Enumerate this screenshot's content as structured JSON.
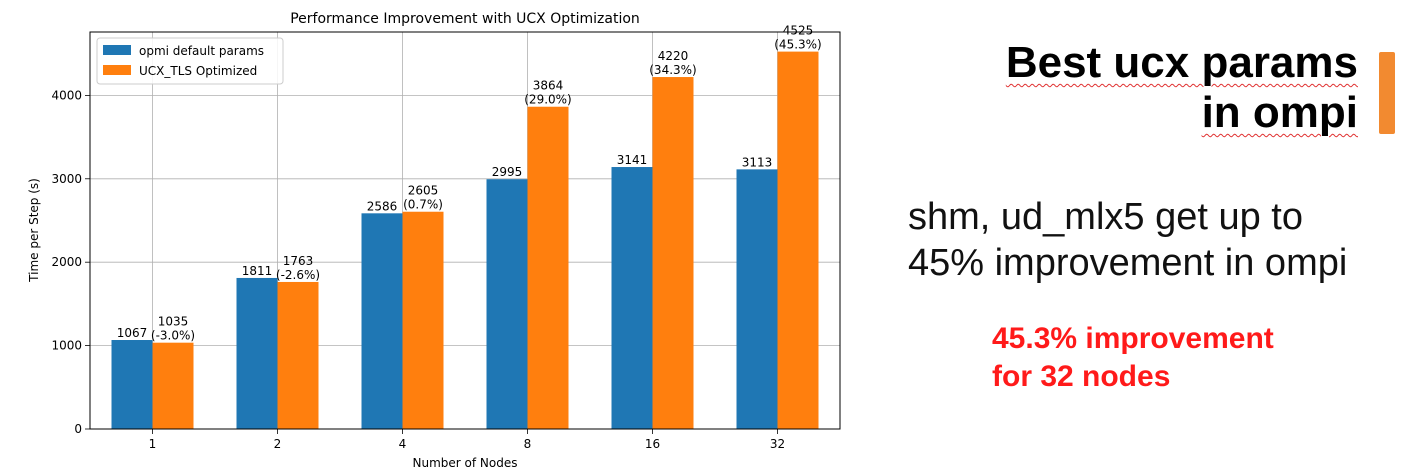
{
  "chart_data": {
    "type": "bar",
    "title": "Performance Improvement with UCX Optimization",
    "xlabel": "Number of Nodes",
    "ylabel": "Time per Step (s)",
    "categories": [
      "1",
      "2",
      "4",
      "8",
      "16",
      "32"
    ],
    "series": [
      {
        "name": "opmi default params",
        "color": "#1f77b4",
        "values": [
          1067,
          1811,
          2586,
          2995,
          3141,
          3113
        ],
        "labels": [
          "1067",
          "1811",
          "2586",
          "2995",
          "3141",
          "3113"
        ]
      },
      {
        "name": "UCX_TLS Optimized",
        "color": "#ff7f0e",
        "values": [
          1035,
          1763,
          2605,
          3864,
          4220,
          4525
        ],
        "labels": [
          "1035",
          "1763",
          "2605",
          "3864",
          "4220",
          "4525"
        ],
        "pct_labels": [
          "(-3.0%)",
          "(-2.6%)",
          "(0.7%)",
          "(29.0%)",
          "(34.3%)",
          "(45.3%)"
        ]
      }
    ],
    "ylim": [
      0,
      4760
    ],
    "yticks": [
      0,
      1000,
      2000,
      3000,
      4000
    ],
    "grid": true,
    "legend": "top-left"
  },
  "slide": {
    "heading_lines": [
      "Best ucx params",
      "in ompi"
    ],
    "body_lines": [
      "shm, ud_mlx5 get up to",
      "45% improvement in ompi"
    ],
    "highlight_lines": [
      "45.3% improvement",
      "for 32 nodes"
    ],
    "accent_color": "#f28a30",
    "highlight_color": "#ff1a1a"
  }
}
